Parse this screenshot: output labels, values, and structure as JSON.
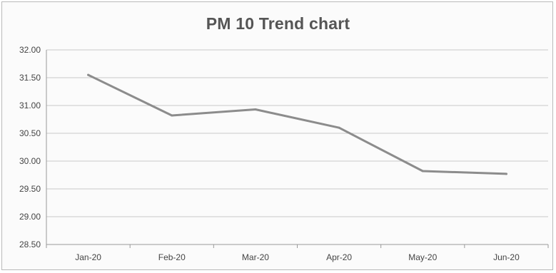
{
  "chart_data": {
    "type": "line",
    "title": "PM 10 Trend chart",
    "categories": [
      "Jan-20",
      "Feb-20",
      "Mar-20",
      "Apr-20",
      "May-20",
      "Jun-20"
    ],
    "series": [
      {
        "values": [
          31.55,
          30.82,
          30.93,
          30.6,
          29.82,
          29.77
        ]
      }
    ],
    "ylim": [
      28.5,
      32.0
    ],
    "yticks": [
      "28.50",
      "29.00",
      "29.50",
      "30.00",
      "30.50",
      "31.00",
      "31.50",
      "32.00"
    ],
    "grid": true,
    "colors": {
      "line": "#8c8c8c",
      "grid": "#c8c8c8",
      "axis": "#9a9a9a"
    }
  }
}
